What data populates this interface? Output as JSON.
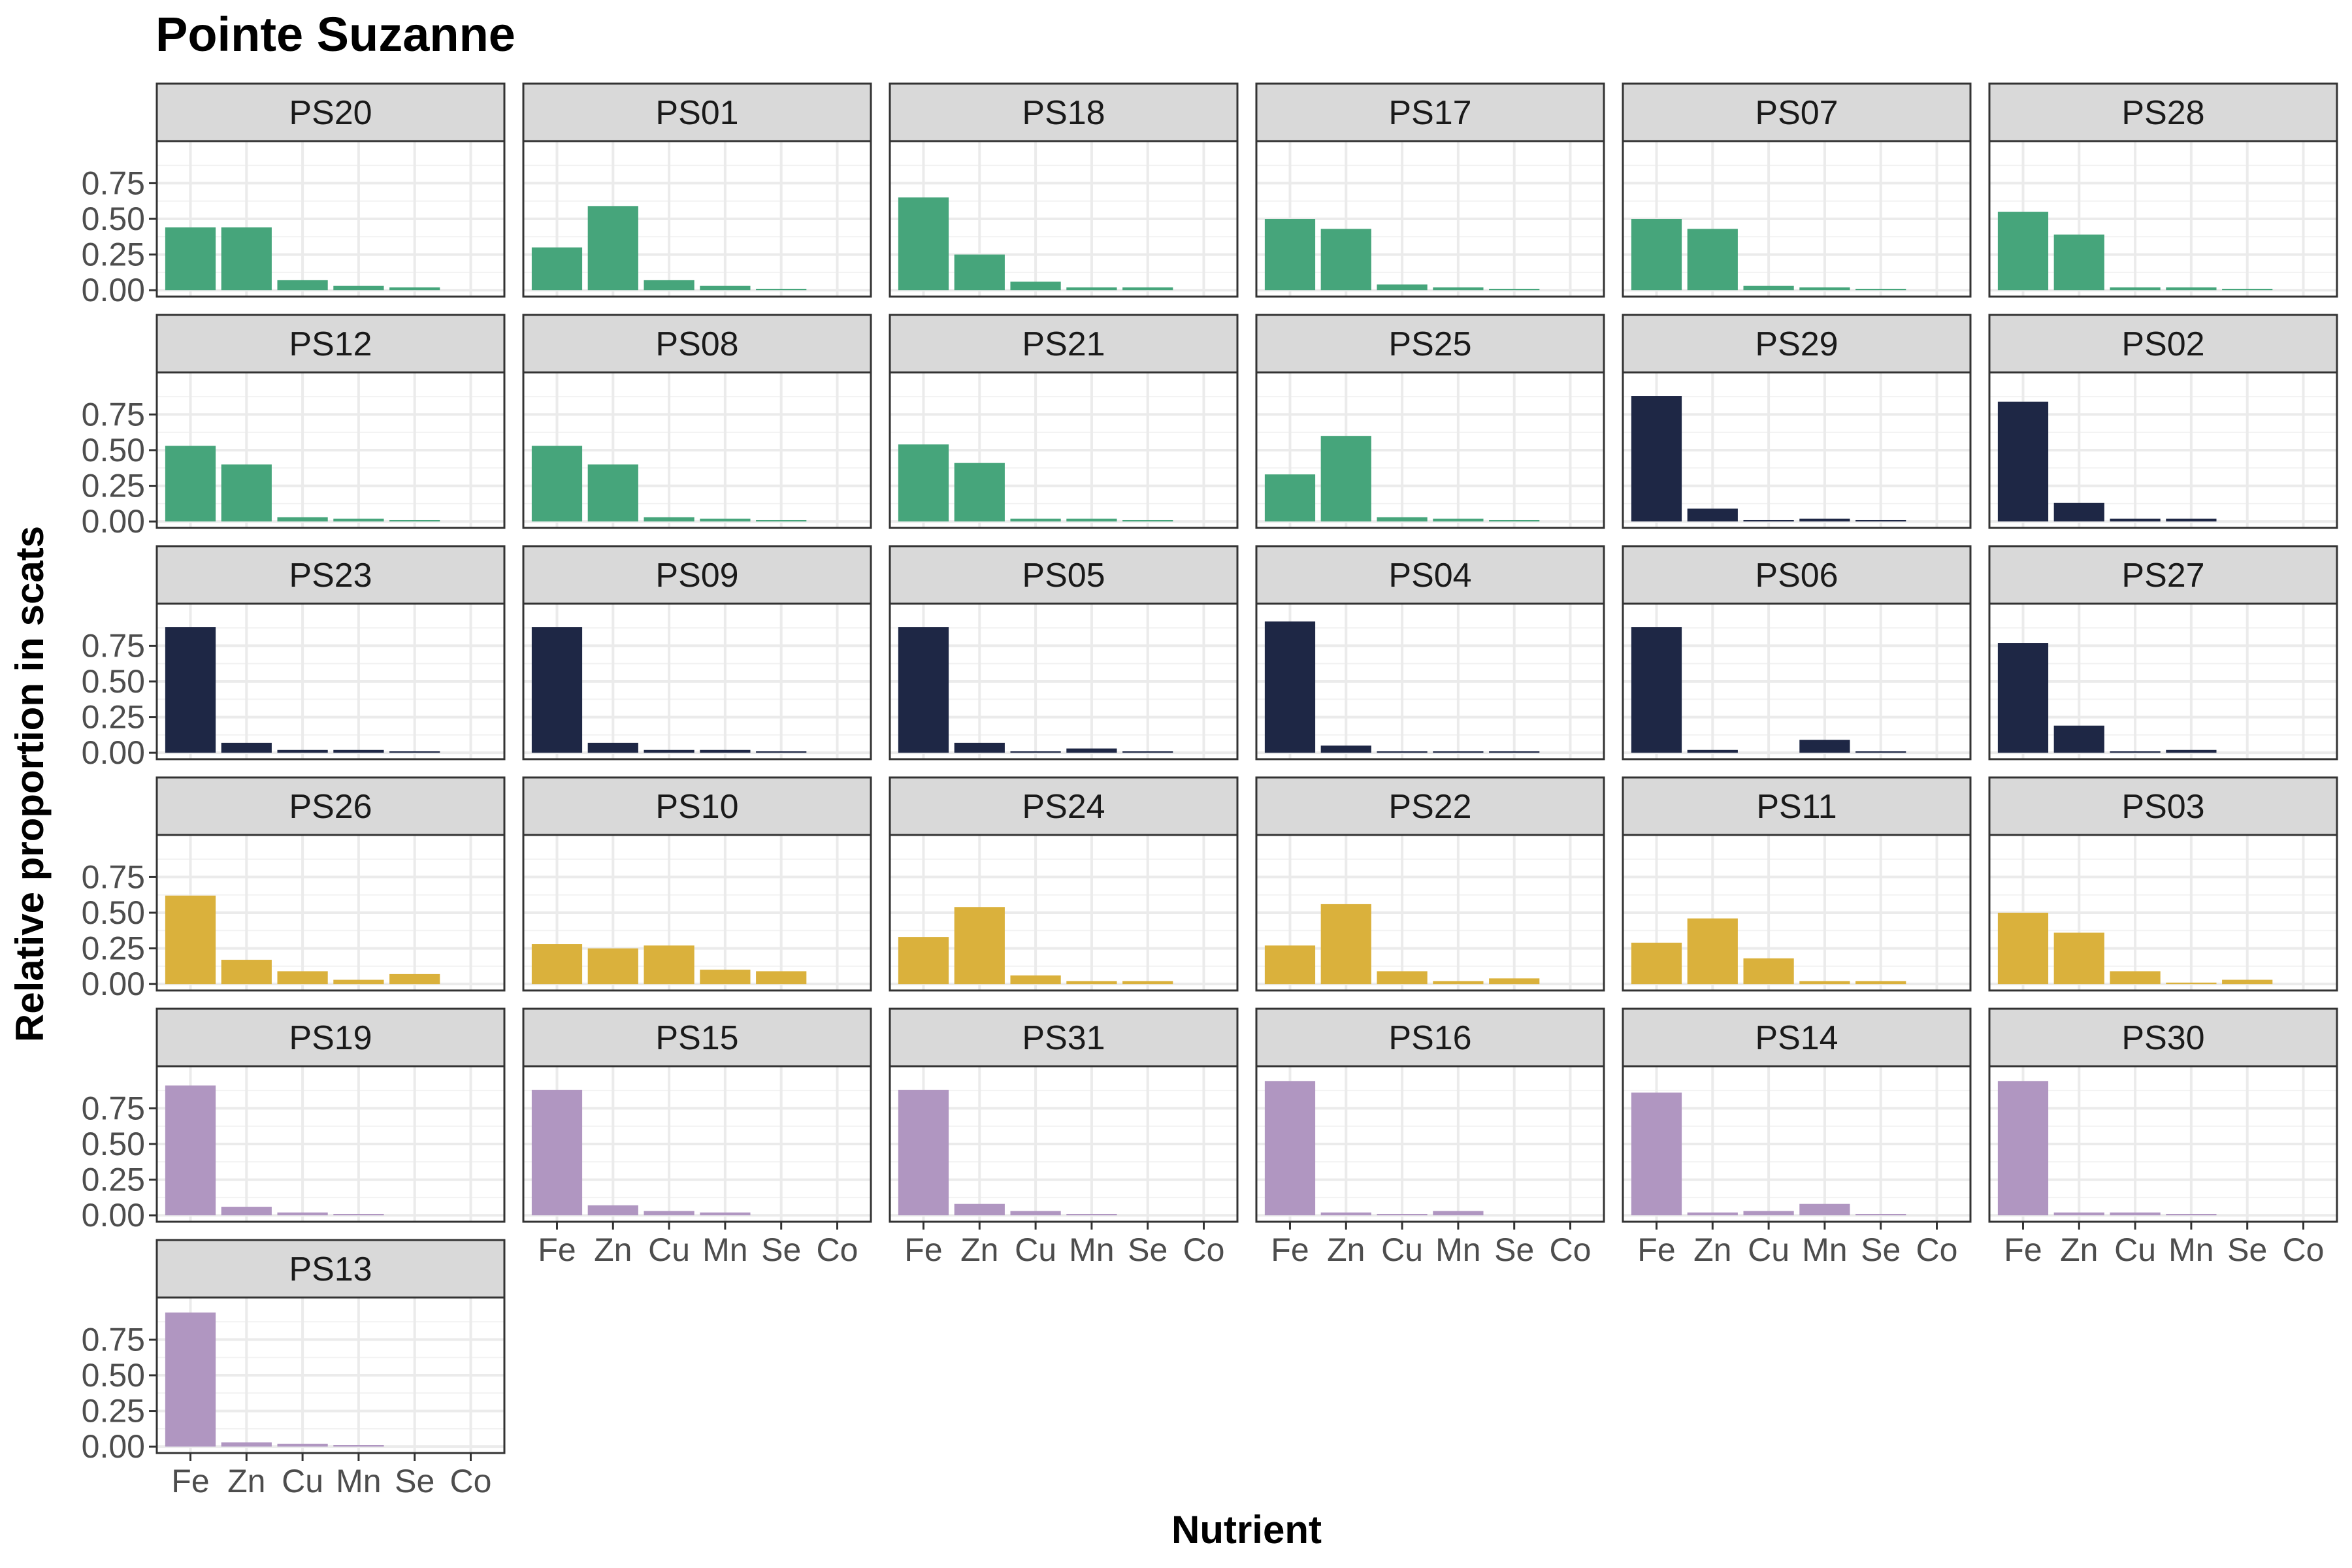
{
  "chart_data": {
    "type": "bar",
    "title": "Pointe Suzanne",
    "xlabel": "Nutrient",
    "ylabel": "Relative proportion in scats",
    "categories": [
      "Fe",
      "Zn",
      "Cu",
      "Mn",
      "Se",
      "Co"
    ],
    "yticks": [
      "0.00",
      "0.25",
      "0.50",
      "0.75"
    ],
    "ylim": [
      0,
      1
    ],
    "grid": true,
    "legend": "none",
    "colors": {
      "green": "#46a57b",
      "navy": "#1e2745",
      "gold": "#dab13c",
      "purple": "#b096c1"
    },
    "panels": [
      {
        "label": "PS20",
        "color": "green",
        "values": [
          0.44,
          0.44,
          0.07,
          0.03,
          0.02,
          0.0
        ]
      },
      {
        "label": "PS01",
        "color": "green",
        "values": [
          0.3,
          0.59,
          0.07,
          0.03,
          0.01,
          0.0
        ]
      },
      {
        "label": "PS18",
        "color": "green",
        "values": [
          0.65,
          0.25,
          0.06,
          0.02,
          0.02,
          0.0
        ]
      },
      {
        "label": "PS17",
        "color": "green",
        "values": [
          0.5,
          0.43,
          0.04,
          0.02,
          0.01,
          0.0
        ]
      },
      {
        "label": "PS07",
        "color": "green",
        "values": [
          0.5,
          0.43,
          0.03,
          0.02,
          0.01,
          0.0
        ]
      },
      {
        "label": "PS28",
        "color": "green",
        "values": [
          0.55,
          0.39,
          0.02,
          0.02,
          0.01,
          0.0
        ]
      },
      {
        "label": "PS12",
        "color": "green",
        "values": [
          0.53,
          0.4,
          0.03,
          0.02,
          0.01,
          0.0
        ]
      },
      {
        "label": "PS08",
        "color": "green",
        "values": [
          0.53,
          0.4,
          0.03,
          0.02,
          0.01,
          0.0
        ]
      },
      {
        "label": "PS21",
        "color": "green",
        "values": [
          0.54,
          0.41,
          0.02,
          0.02,
          0.01,
          0.0
        ]
      },
      {
        "label": "PS25",
        "color": "green",
        "values": [
          0.33,
          0.6,
          0.03,
          0.02,
          0.01,
          0.0
        ]
      },
      {
        "label": "PS29",
        "color": "navy",
        "values": [
          0.88,
          0.09,
          0.01,
          0.02,
          0.01,
          0.0
        ]
      },
      {
        "label": "PS02",
        "color": "navy",
        "values": [
          0.84,
          0.13,
          0.02,
          0.02,
          0.0,
          0.0
        ]
      },
      {
        "label": "PS23",
        "color": "navy",
        "values": [
          0.88,
          0.07,
          0.02,
          0.02,
          0.01,
          0.0
        ]
      },
      {
        "label": "PS09",
        "color": "navy",
        "values": [
          0.88,
          0.07,
          0.02,
          0.02,
          0.01,
          0.0
        ]
      },
      {
        "label": "PS05",
        "color": "navy",
        "values": [
          0.88,
          0.07,
          0.01,
          0.03,
          0.01,
          0.0
        ]
      },
      {
        "label": "PS04",
        "color": "navy",
        "values": [
          0.92,
          0.05,
          0.01,
          0.01,
          0.01,
          0.0
        ]
      },
      {
        "label": "PS06",
        "color": "navy",
        "values": [
          0.88,
          0.02,
          0.0,
          0.09,
          0.01,
          0.0
        ]
      },
      {
        "label": "PS27",
        "color": "navy",
        "values": [
          0.77,
          0.19,
          0.01,
          0.02,
          0.0,
          0.0
        ]
      },
      {
        "label": "PS26",
        "color": "gold",
        "values": [
          0.62,
          0.17,
          0.09,
          0.03,
          0.07,
          0.0
        ]
      },
      {
        "label": "PS10",
        "color": "gold",
        "values": [
          0.28,
          0.25,
          0.27,
          0.1,
          0.09,
          0.0
        ]
      },
      {
        "label": "PS24",
        "color": "gold",
        "values": [
          0.33,
          0.54,
          0.06,
          0.02,
          0.02,
          0.0
        ]
      },
      {
        "label": "PS22",
        "color": "gold",
        "values": [
          0.27,
          0.56,
          0.09,
          0.02,
          0.04,
          0.0
        ]
      },
      {
        "label": "PS11",
        "color": "gold",
        "values": [
          0.29,
          0.46,
          0.18,
          0.02,
          0.02,
          0.0
        ]
      },
      {
        "label": "PS03",
        "color": "gold",
        "values": [
          0.5,
          0.36,
          0.09,
          0.01,
          0.03,
          0.0
        ]
      },
      {
        "label": "PS19",
        "color": "purple",
        "values": [
          0.91,
          0.06,
          0.02,
          0.01,
          0.0,
          0.0
        ]
      },
      {
        "label": "PS15",
        "color": "purple",
        "values": [
          0.88,
          0.07,
          0.03,
          0.02,
          0.0,
          0.0
        ]
      },
      {
        "label": "PS31",
        "color": "purple",
        "values": [
          0.88,
          0.08,
          0.03,
          0.01,
          0.0,
          0.0
        ]
      },
      {
        "label": "PS16",
        "color": "purple",
        "values": [
          0.94,
          0.02,
          0.01,
          0.03,
          0.0,
          0.0
        ]
      },
      {
        "label": "PS14",
        "color": "purple",
        "values": [
          0.86,
          0.02,
          0.03,
          0.08,
          0.01,
          0.0
        ]
      },
      {
        "label": "PS30",
        "color": "purple",
        "values": [
          0.94,
          0.02,
          0.02,
          0.01,
          0.0,
          0.0
        ]
      },
      {
        "label": "PS13",
        "color": "purple",
        "values": [
          0.94,
          0.03,
          0.02,
          0.01,
          0.0,
          0.0
        ]
      }
    ]
  }
}
